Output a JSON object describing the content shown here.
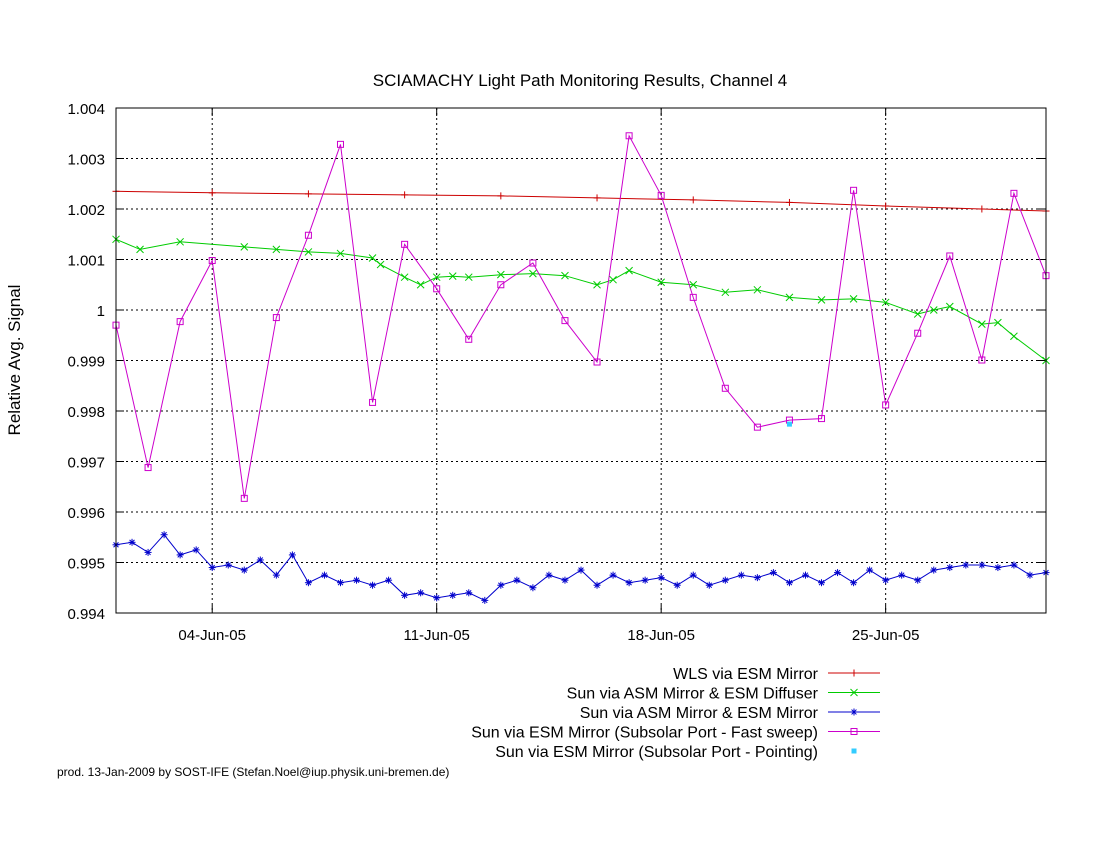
{
  "chart_data": {
    "type": "line",
    "title": "SCIAMACHY Light Path Monitoring Results, Channel 4",
    "xlabel": "",
    "ylabel": "Relative Avg. Signal",
    "x_type": "date",
    "xlim": [
      "2005-06-01",
      "2005-06-30"
    ],
    "ylim": [
      0.994,
      1.004
    ],
    "x_tick_labels": [
      {
        "date": "2005-06-04",
        "label": "04-Jun-05"
      },
      {
        "date": "2005-06-11",
        "label": "11-Jun-05"
      },
      {
        "date": "2005-06-18",
        "label": "18-Jun-05"
      },
      {
        "date": "2005-06-25",
        "label": "25-Jun-05"
      }
    ],
    "y_ticks": [
      0.994,
      0.995,
      0.996,
      0.997,
      0.998,
      0.999,
      1,
      1.001,
      1.002,
      1.003,
      1.004
    ],
    "y_tick_labels": [
      "0.994",
      "0.995",
      "0.996",
      "0.997",
      "0.998",
      "0.999",
      "1",
      "1.001",
      "1.002",
      "1.003",
      "1.004"
    ],
    "grid": true,
    "legend_position": "below-right",
    "series": [
      {
        "name": "WLS via ESM Mirror",
        "color": "#cc0000",
        "marker": "plus",
        "line": true,
        "x": [
          "2005-06-01",
          "2005-06-04",
          "2005-06-07",
          "2005-06-10",
          "2005-06-13",
          "2005-06-16",
          "2005-06-19",
          "2005-06-22",
          "2005-06-25",
          "2005-06-28",
          "2005-06-30"
        ],
        "y": [
          1.00235,
          1.00232,
          1.0023,
          1.00228,
          1.00226,
          1.00222,
          1.00218,
          1.00213,
          1.00206,
          1.002,
          1.00196
        ]
      },
      {
        "name": "Sun via ASM Mirror & ESM Diffuser",
        "color": "#00cc00",
        "marker": "x",
        "line": true,
        "x": [
          "2005-06-01",
          "2005-06-01 18:00",
          "2005-06-03",
          "2005-06-05",
          "2005-06-06",
          "2005-06-07",
          "2005-06-08",
          "2005-06-09",
          "2005-06-09 06:00",
          "2005-06-10",
          "2005-06-10 12:00",
          "2005-06-11",
          "2005-06-11 12:00",
          "2005-06-12",
          "2005-06-13",
          "2005-06-14",
          "2005-06-15",
          "2005-06-16",
          "2005-06-16 12:00",
          "2005-06-17",
          "2005-06-18",
          "2005-06-19",
          "2005-06-20",
          "2005-06-21",
          "2005-06-22",
          "2005-06-23",
          "2005-06-24",
          "2005-06-25",
          "2005-06-26",
          "2005-06-26 12:00",
          "2005-06-27",
          "2005-06-28",
          "2005-06-28 12:00",
          "2005-06-29",
          "2005-06-30"
        ],
        "y": [
          1.0014,
          1.0012,
          1.00135,
          1.00125,
          1.0012,
          1.00115,
          1.00112,
          1.00103,
          1.0009,
          1.00065,
          1.0005,
          1.00065,
          1.00067,
          1.00065,
          1.0007,
          1.00072,
          1.00068,
          1.0005,
          1.0006,
          1.00078,
          1.00055,
          1.0005,
          1.00035,
          1.0004,
          1.00025,
          1.0002,
          1.00022,
          1.00015,
          0.99992,
          1.0,
          1.00007,
          0.99972,
          0.99975,
          0.99948,
          0.999
        ]
      },
      {
        "name": "Sun via ASM Mirror & ESM Mirror",
        "color": "#0000cc",
        "marker": "star",
        "line": true,
        "x": [
          "2005-06-01",
          "2005-06-01 12:00",
          "2005-06-02",
          "2005-06-02 12:00",
          "2005-06-03",
          "2005-06-03 12:00",
          "2005-06-04",
          "2005-06-04 12:00",
          "2005-06-05",
          "2005-06-05 12:00",
          "2005-06-06",
          "2005-06-06 12:00",
          "2005-06-07",
          "2005-06-07 12:00",
          "2005-06-08",
          "2005-06-08 12:00",
          "2005-06-09",
          "2005-06-09 12:00",
          "2005-06-10",
          "2005-06-10 12:00",
          "2005-06-11",
          "2005-06-11 12:00",
          "2005-06-12",
          "2005-06-12 12:00",
          "2005-06-13",
          "2005-06-13 12:00",
          "2005-06-14",
          "2005-06-14 12:00",
          "2005-06-15",
          "2005-06-15 12:00",
          "2005-06-16",
          "2005-06-16 12:00",
          "2005-06-17",
          "2005-06-17 12:00",
          "2005-06-18",
          "2005-06-18 12:00",
          "2005-06-19",
          "2005-06-19 12:00",
          "2005-06-20",
          "2005-06-20 12:00",
          "2005-06-21",
          "2005-06-21 12:00",
          "2005-06-22",
          "2005-06-22 12:00",
          "2005-06-23",
          "2005-06-23 12:00",
          "2005-06-24",
          "2005-06-24 12:00",
          "2005-06-25",
          "2005-06-25 12:00",
          "2005-06-26",
          "2005-06-26 12:00",
          "2005-06-27",
          "2005-06-27 12:00",
          "2005-06-28",
          "2005-06-28 12:00",
          "2005-06-29",
          "2005-06-29 12:00",
          "2005-06-30"
        ],
        "y": [
          0.99535,
          0.9954,
          0.9952,
          0.99555,
          0.99515,
          0.99525,
          0.9949,
          0.99495,
          0.99485,
          0.99505,
          0.99475,
          0.99515,
          0.9946,
          0.99475,
          0.9946,
          0.99465,
          0.99455,
          0.99465,
          0.99435,
          0.9944,
          0.9943,
          0.99435,
          0.9944,
          0.99425,
          0.99455,
          0.99465,
          0.9945,
          0.99475,
          0.99465,
          0.99485,
          0.99455,
          0.99475,
          0.9946,
          0.99465,
          0.9947,
          0.99455,
          0.99475,
          0.99455,
          0.99465,
          0.99475,
          0.9947,
          0.9948,
          0.9946,
          0.99475,
          0.9946,
          0.9948,
          0.9946,
          0.99485,
          0.99465,
          0.99475,
          0.99465,
          0.99485,
          0.9949,
          0.99495,
          0.99495,
          0.9949,
          0.99495,
          0.99475,
          0.9948
        ]
      },
      {
        "name": "Sun via ESM Mirror (Subsolar Port - Fast sweep)",
        "color": "#cc00cc",
        "marker": "square",
        "line": true,
        "x": [
          "2005-06-01",
          "2005-06-02",
          "2005-06-03",
          "2005-06-04",
          "2005-06-05",
          "2005-06-06",
          "2005-06-07",
          "2005-06-08",
          "2005-06-09",
          "2005-06-10",
          "2005-06-11",
          "2005-06-12",
          "2005-06-13",
          "2005-06-14",
          "2005-06-15",
          "2005-06-16",
          "2005-06-17",
          "2005-06-18",
          "2005-06-19",
          "2005-06-20",
          "2005-06-21",
          "2005-06-22",
          "2005-06-23",
          "2005-06-24",
          "2005-06-25",
          "2005-06-26",
          "2005-06-27",
          "2005-06-28",
          "2005-06-29",
          "2005-06-30"
        ],
        "y": [
          0.9997,
          0.99688,
          0.99977,
          1.00098,
          0.99627,
          0.99985,
          1.00148,
          1.00328,
          0.99817,
          1.0013,
          1.00042,
          0.99942,
          1.0005,
          1.00093,
          0.99979,
          0.99897,
          1.00345,
          1.00227,
          1.00025,
          0.99845,
          0.99768,
          0.99782,
          0.99785,
          1.00237,
          0.99812,
          0.99954,
          1.00107,
          0.99901,
          1.00231,
          1.00068
        ]
      },
      {
        "name": "Sun via ESM Mirror (Subsolar Port - Pointing)",
        "color": "#33ccff",
        "marker": "dot",
        "line": false,
        "x": [
          "2005-06-22"
        ],
        "y": [
          0.99774
        ]
      }
    ]
  },
  "footer": "prod. 13-Jan-2009 by SOST-IFE (Stefan.Noel@iup.physik.uni-bremen.de)"
}
